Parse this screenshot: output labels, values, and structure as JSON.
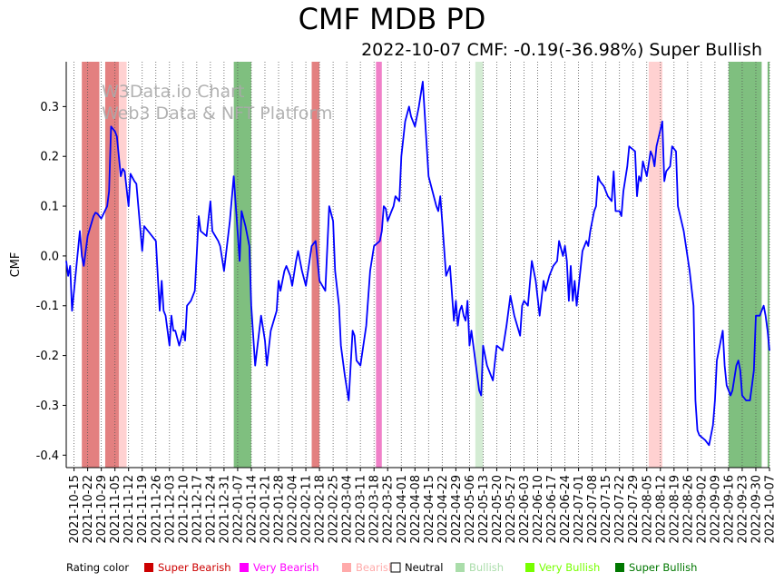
{
  "header": {
    "title": "CMF MDB PD",
    "subtitle": "2022-10-07 CMF: -0.19(-36.98%) Super Bullish"
  },
  "watermark": {
    "line1": "W3Data.io Chart",
    "line2": "Web3 Data & NFT Platform"
  },
  "legend": {
    "caption": "Rating color",
    "items": [
      {
        "label": "Super Bearish",
        "color": "#cc0000"
      },
      {
        "label": "Very Bearish",
        "color": "#ff00ff"
      },
      {
        "label": "Bearish",
        "color": "#ffaaaa"
      },
      {
        "label": "Neutral",
        "color": "#ffffff"
      },
      {
        "label": "Bullish",
        "color": "#aaddaa"
      },
      {
        "label": "Very Bullish",
        "color": "#77ff00"
      },
      {
        "label": "Super Bullish",
        "color": "#007700"
      }
    ]
  },
  "chart_data": {
    "type": "line",
    "ylabel": "CMF",
    "x_start": "2021-10-11",
    "x_end": "2022-10-07",
    "ylim": [
      -0.425,
      0.39
    ],
    "yticks": [
      -0.4,
      -0.3,
      -0.2,
      -0.1,
      0.0,
      0.1,
      0.2,
      0.3
    ],
    "xticks": [
      "2021-10-15",
      "2021-10-22",
      "2021-10-29",
      "2021-11-05",
      "2021-11-12",
      "2021-11-19",
      "2021-11-26",
      "2021-12-03",
      "2021-12-10",
      "2021-12-17",
      "2021-12-24",
      "2021-12-31",
      "2022-01-07",
      "2022-01-14",
      "2022-01-21",
      "2022-01-28",
      "2022-02-04",
      "2022-02-11",
      "2022-02-18",
      "2022-02-25",
      "2022-03-04",
      "2022-03-11",
      "2022-03-18",
      "2022-03-25",
      "2022-04-01",
      "2022-04-08",
      "2022-04-15",
      "2022-04-22",
      "2022-04-29",
      "2022-05-06",
      "2022-05-13",
      "2022-05-20",
      "2022-05-27",
      "2022-06-03",
      "2022-06-10",
      "2022-06-17",
      "2022-06-24",
      "2022-07-01",
      "2022-07-08",
      "2022-07-15",
      "2022-07-22",
      "2022-07-29",
      "2022-08-05",
      "2022-08-12",
      "2022-08-19",
      "2022-08-26",
      "2022-09-02",
      "2022-09-09",
      "2022-09-16",
      "2022-09-23",
      "2022-09-30",
      "2022-10-07"
    ],
    "rating_bands": [
      {
        "start": "2021-10-19",
        "end": "2021-10-28",
        "rating": "Super Bearish",
        "color": "#e38080"
      },
      {
        "start": "2021-10-31",
        "end": "2021-11-07",
        "rating": "Super Bearish",
        "color": "#e38080"
      },
      {
        "start": "2021-11-07",
        "end": "2021-11-11",
        "rating": "Bearish",
        "color": "#ffd1d1"
      },
      {
        "start": "2022-01-05",
        "end": "2022-01-14",
        "rating": "Super Bullish",
        "color": "#7fbf7f"
      },
      {
        "start": "2022-02-14",
        "end": "2022-02-18",
        "rating": "Super Bearish",
        "color": "#e38080"
      },
      {
        "start": "2022-03-19",
        "end": "2022-03-22",
        "rating": "Very Bearish",
        "color": "#f080c8"
      },
      {
        "start": "2022-05-09",
        "end": "2022-05-13",
        "rating": "Bullish",
        "color": "#d4ecd4"
      },
      {
        "start": "2022-08-06",
        "end": "2022-08-13",
        "rating": "Bearish",
        "color": "#ffd1d1"
      },
      {
        "start": "2022-09-16",
        "end": "2022-10-03",
        "rating": "Super Bullish",
        "color": "#7fbf7f"
      },
      {
        "start": "2022-10-06",
        "end": "2022-10-08",
        "rating": "Super Bullish",
        "color": "#7fbf7f"
      }
    ],
    "series": [
      {
        "color": "#0000ff",
        "points": [
          [
            "2021-10-11",
            -0.01
          ],
          [
            "2021-10-12",
            -0.04
          ],
          [
            "2021-10-13",
            -0.02
          ],
          [
            "2021-10-14",
            -0.11
          ],
          [
            "2021-10-15",
            -0.07
          ],
          [
            "2021-10-18",
            0.05
          ],
          [
            "2021-10-19",
            0.0
          ],
          [
            "2021-10-20",
            -0.02
          ],
          [
            "2021-10-22",
            0.04
          ],
          [
            "2021-10-25",
            0.08
          ],
          [
            "2021-10-26",
            0.087
          ],
          [
            "2021-10-27",
            0.085
          ],
          [
            "2021-10-28",
            0.08
          ],
          [
            "2021-10-29",
            0.075
          ],
          [
            "2021-11-01",
            0.1
          ],
          [
            "2021-11-02",
            0.13
          ],
          [
            "2021-11-03",
            0.26
          ],
          [
            "2021-11-05",
            0.25
          ],
          [
            "2021-11-06",
            0.24
          ],
          [
            "2021-11-08",
            0.16
          ],
          [
            "2021-11-09",
            0.175
          ],
          [
            "2021-11-10",
            0.17
          ],
          [
            "2021-11-12",
            0.1
          ],
          [
            "2021-11-13",
            0.165
          ],
          [
            "2021-11-15",
            0.15
          ],
          [
            "2021-11-16",
            0.145
          ],
          [
            "2021-11-19",
            0.01
          ],
          [
            "2021-11-20",
            0.06
          ],
          [
            "2021-11-22",
            0.05
          ],
          [
            "2021-11-26",
            0.03
          ],
          [
            "2021-11-28",
            -0.11
          ],
          [
            "2021-11-29",
            -0.05
          ],
          [
            "2021-11-30",
            -0.11
          ],
          [
            "2021-12-01",
            -0.12
          ],
          [
            "2021-12-03",
            -0.18
          ],
          [
            "2021-12-04",
            -0.12
          ],
          [
            "2021-12-05",
            -0.15
          ],
          [
            "2021-12-06",
            -0.15
          ],
          [
            "2021-12-08",
            -0.18
          ],
          [
            "2021-12-10",
            -0.15
          ],
          [
            "2021-12-11",
            -0.17
          ],
          [
            "2021-12-12",
            -0.1
          ],
          [
            "2021-12-14",
            -0.09
          ],
          [
            "2021-12-16",
            -0.07
          ],
          [
            "2021-12-18",
            0.08
          ],
          [
            "2021-12-19",
            0.05
          ],
          [
            "2021-12-22",
            0.04
          ],
          [
            "2021-12-24",
            0.11
          ],
          [
            "2021-12-25",
            0.05
          ],
          [
            "2021-12-28",
            0.03
          ],
          [
            "2021-12-29",
            0.02
          ],
          [
            "2021-12-31",
            -0.03
          ],
          [
            "2022-01-03",
            0.07
          ],
          [
            "2022-01-05",
            0.16
          ],
          [
            "2022-01-08",
            -0.01
          ],
          [
            "2022-01-09",
            0.09
          ],
          [
            "2022-01-11",
            0.06
          ],
          [
            "2022-01-13",
            0.02
          ],
          [
            "2022-01-14",
            -0.1
          ],
          [
            "2022-01-16",
            -0.22
          ],
          [
            "2022-01-19",
            -0.12
          ],
          [
            "2022-01-21",
            -0.17
          ],
          [
            "2022-01-22",
            -0.22
          ],
          [
            "2022-01-24",
            -0.15
          ],
          [
            "2022-01-27",
            -0.11
          ],
          [
            "2022-01-28",
            -0.05
          ],
          [
            "2022-01-29",
            -0.07
          ],
          [
            "2022-01-31",
            -0.03
          ],
          [
            "2022-02-01",
            -0.02
          ],
          [
            "2022-02-03",
            -0.04
          ],
          [
            "2022-02-04",
            -0.06
          ],
          [
            "2022-02-06",
            -0.01
          ],
          [
            "2022-02-07",
            0.01
          ],
          [
            "2022-02-09",
            -0.03
          ],
          [
            "2022-02-11",
            -0.06
          ],
          [
            "2022-02-14",
            0.02
          ],
          [
            "2022-02-16",
            0.03
          ],
          [
            "2022-02-18",
            -0.05
          ],
          [
            "2022-02-21",
            -0.07
          ],
          [
            "2022-02-23",
            0.1
          ],
          [
            "2022-02-25",
            0.07
          ],
          [
            "2022-02-26",
            -0.03
          ],
          [
            "2022-02-28",
            -0.1
          ],
          [
            "2022-03-01",
            -0.18
          ],
          [
            "2022-03-03",
            -0.24
          ],
          [
            "2022-03-05",
            -0.29
          ],
          [
            "2022-03-07",
            -0.15
          ],
          [
            "2022-03-08",
            -0.16
          ],
          [
            "2022-03-09",
            -0.21
          ],
          [
            "2022-03-11",
            -0.22
          ],
          [
            "2022-03-14",
            -0.14
          ],
          [
            "2022-03-16",
            -0.03
          ],
          [
            "2022-03-18",
            0.02
          ],
          [
            "2022-03-21",
            0.03
          ],
          [
            "2022-03-22",
            0.05
          ],
          [
            "2022-03-23",
            0.1
          ],
          [
            "2022-03-24",
            0.095
          ],
          [
            "2022-03-25",
            0.07
          ],
          [
            "2022-03-27",
            0.09
          ],
          [
            "2022-03-28",
            0.1
          ],
          [
            "2022-03-29",
            0.12
          ],
          [
            "2022-03-31",
            0.11
          ],
          [
            "2022-04-01",
            0.2
          ],
          [
            "2022-04-03",
            0.27
          ],
          [
            "2022-04-05",
            0.3
          ],
          [
            "2022-04-06",
            0.28
          ],
          [
            "2022-04-08",
            0.26
          ],
          [
            "2022-04-10",
            0.3
          ],
          [
            "2022-04-12",
            0.35
          ],
          [
            "2022-04-15",
            0.16
          ],
          [
            "2022-04-17",
            0.13
          ],
          [
            "2022-04-19",
            0.1
          ],
          [
            "2022-04-20",
            0.09
          ],
          [
            "2022-04-21",
            0.12
          ],
          [
            "2022-04-22",
            0.07
          ],
          [
            "2022-04-24",
            -0.04
          ],
          [
            "2022-04-26",
            -0.02
          ],
          [
            "2022-04-28",
            -0.13
          ],
          [
            "2022-04-29",
            -0.09
          ],
          [
            "2022-04-30",
            -0.14
          ],
          [
            "2022-05-01",
            -0.11
          ],
          [
            "2022-05-02",
            -0.1
          ],
          [
            "2022-05-03",
            -0.12
          ],
          [
            "2022-05-04",
            -0.13
          ],
          [
            "2022-05-05",
            -0.09
          ],
          [
            "2022-05-06",
            -0.18
          ],
          [
            "2022-05-07",
            -0.15
          ],
          [
            "2022-05-09",
            -0.21
          ],
          [
            "2022-05-11",
            -0.27
          ],
          [
            "2022-05-12",
            -0.28
          ],
          [
            "2022-05-13",
            -0.18
          ],
          [
            "2022-05-15",
            -0.22
          ],
          [
            "2022-05-17",
            -0.24
          ],
          [
            "2022-05-18",
            -0.25
          ],
          [
            "2022-05-20",
            -0.18
          ],
          [
            "2022-05-23",
            -0.19
          ],
          [
            "2022-05-25",
            -0.14
          ],
          [
            "2022-05-27",
            -0.08
          ],
          [
            "2022-05-29",
            -0.12
          ],
          [
            "2022-06-01",
            -0.16
          ],
          [
            "2022-06-02",
            -0.1
          ],
          [
            "2022-06-03",
            -0.09
          ],
          [
            "2022-06-05",
            -0.1
          ],
          [
            "2022-06-07",
            -0.01
          ],
          [
            "2022-06-09",
            -0.05
          ],
          [
            "2022-06-11",
            -0.12
          ],
          [
            "2022-06-13",
            -0.05
          ],
          [
            "2022-06-14",
            -0.07
          ],
          [
            "2022-06-16",
            -0.04
          ],
          [
            "2022-06-18",
            -0.02
          ],
          [
            "2022-06-20",
            -0.01
          ],
          [
            "2022-06-21",
            0.03
          ],
          [
            "2022-06-23",
            0.0
          ],
          [
            "2022-06-24",
            0.02
          ],
          [
            "2022-06-25",
            -0.01
          ],
          [
            "2022-06-26",
            -0.09
          ],
          [
            "2022-06-27",
            -0.02
          ],
          [
            "2022-06-28",
            -0.09
          ],
          [
            "2022-06-29",
            -0.05
          ],
          [
            "2022-06-30",
            -0.1
          ],
          [
            "2022-07-03",
            0.01
          ],
          [
            "2022-07-05",
            0.03
          ],
          [
            "2022-07-06",
            0.02
          ],
          [
            "2022-07-07",
            0.05
          ],
          [
            "2022-07-09",
            0.09
          ],
          [
            "2022-07-10",
            0.1
          ],
          [
            "2022-07-11",
            0.16
          ],
          [
            "2022-07-12",
            0.15
          ],
          [
            "2022-07-14",
            0.14
          ],
          [
            "2022-07-16",
            0.12
          ],
          [
            "2022-07-18",
            0.11
          ],
          [
            "2022-07-19",
            0.17
          ],
          [
            "2022-07-20",
            0.09
          ],
          [
            "2022-07-22",
            0.09
          ],
          [
            "2022-07-23",
            0.08
          ],
          [
            "2022-07-24",
            0.13
          ],
          [
            "2022-07-26",
            0.18
          ],
          [
            "2022-07-27",
            0.22
          ],
          [
            "2022-07-30",
            0.21
          ],
          [
            "2022-07-31",
            0.12
          ],
          [
            "2022-08-01",
            0.16
          ],
          [
            "2022-08-02",
            0.15
          ],
          [
            "2022-08-03",
            0.19
          ],
          [
            "2022-08-05",
            0.16
          ],
          [
            "2022-08-07",
            0.21
          ],
          [
            "2022-08-08",
            0.2
          ],
          [
            "2022-08-09",
            0.18
          ],
          [
            "2022-08-10",
            0.22
          ],
          [
            "2022-08-13",
            0.27
          ],
          [
            "2022-08-14",
            0.15
          ],
          [
            "2022-08-15",
            0.17
          ],
          [
            "2022-08-17",
            0.18
          ],
          [
            "2022-08-18",
            0.22
          ],
          [
            "2022-08-20",
            0.21
          ],
          [
            "2022-08-21",
            0.1
          ],
          [
            "2022-08-24",
            0.05
          ],
          [
            "2022-08-27",
            -0.03
          ],
          [
            "2022-08-29",
            -0.1
          ],
          [
            "2022-08-30",
            -0.29
          ],
          [
            "2022-08-31",
            -0.35
          ],
          [
            "2022-09-01",
            -0.36
          ],
          [
            "2022-09-04",
            -0.37
          ],
          [
            "2022-09-06",
            -0.38
          ],
          [
            "2022-09-08",
            -0.34
          ],
          [
            "2022-09-09",
            -0.29
          ],
          [
            "2022-09-10",
            -0.21
          ],
          [
            "2022-09-11",
            -0.19
          ],
          [
            "2022-09-12",
            -0.17
          ],
          [
            "2022-09-13",
            -0.15
          ],
          [
            "2022-09-14",
            -0.22
          ],
          [
            "2022-09-15",
            -0.26
          ],
          [
            "2022-09-17",
            -0.28
          ],
          [
            "2022-09-18",
            -0.27
          ],
          [
            "2022-09-20",
            -0.22
          ],
          [
            "2022-09-21",
            -0.21
          ],
          [
            "2022-09-22",
            -0.23
          ],
          [
            "2022-09-23",
            -0.28
          ],
          [
            "2022-09-25",
            -0.29
          ],
          [
            "2022-09-27",
            -0.29
          ],
          [
            "2022-09-28",
            -0.26
          ],
          [
            "2022-09-29",
            -0.23
          ],
          [
            "2022-09-30",
            -0.12
          ],
          [
            "2022-10-02",
            -0.12
          ],
          [
            "2022-10-03",
            -0.11
          ],
          [
            "2022-10-04",
            -0.1
          ],
          [
            "2022-10-05",
            -0.12
          ],
          [
            "2022-10-06",
            -0.15
          ],
          [
            "2022-10-07",
            -0.19
          ]
        ]
      }
    ]
  }
}
